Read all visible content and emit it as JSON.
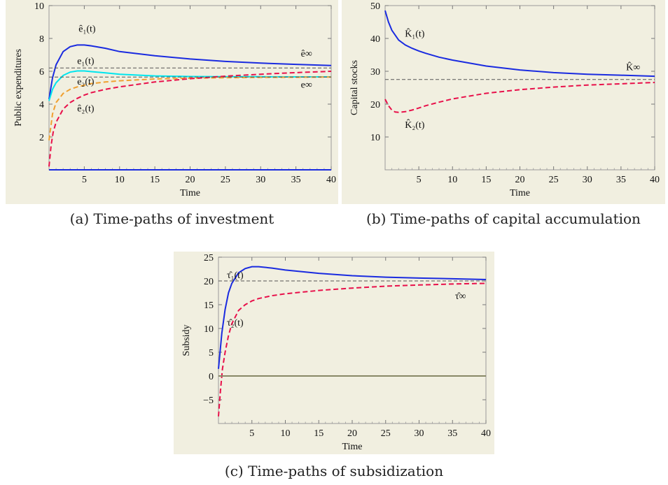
{
  "figures": [
    {
      "caption": "(a) Time-paths of investment",
      "chart_data": {
        "type": "line",
        "xlabel": "Time",
        "ylabel": "Public expenditures",
        "xlim": [
          0,
          40
        ],
        "ylim": [
          0,
          10
        ],
        "xticks": [
          5,
          10,
          15,
          20,
          25,
          30,
          35,
          40
        ],
        "yticks": [
          2,
          4,
          6,
          8,
          10
        ],
        "series": [
          {
            "color": "#1a2be0",
            "dash": "solid",
            "x": [
              0,
              0.5,
              1,
              2,
              3,
              4,
              5,
              6,
              8,
              10,
              15,
              20,
              25,
              30,
              35,
              40
            ],
            "y": [
              4.3,
              5.6,
              6.4,
              7.2,
              7.5,
              7.6,
              7.6,
              7.55,
              7.4,
              7.2,
              6.95,
              6.75,
              6.6,
              6.5,
              6.42,
              6.35
            ]
          },
          {
            "color": "#00e5ee",
            "dash": "solid",
            "x": [
              0,
              0.5,
              1,
              2,
              3,
              4,
              5,
              6,
              8,
              10,
              15,
              20,
              25,
              30,
              35,
              40
            ],
            "y": [
              4.2,
              4.9,
              5.3,
              5.75,
              5.95,
              6.02,
              6.02,
              5.98,
              5.9,
              5.82,
              5.72,
              5.68,
              5.67,
              5.67,
              5.66,
              5.66
            ]
          },
          {
            "color": "#f0a030",
            "dash": "dashed",
            "x": [
              0,
              0.5,
              1,
              2,
              3,
              4,
              5,
              6,
              8,
              10,
              15,
              20,
              25,
              30,
              35,
              40
            ],
            "y": [
              1.8,
              3.4,
              4.1,
              4.65,
              4.9,
              5.05,
              5.15,
              5.25,
              5.35,
              5.42,
              5.53,
              5.58,
              5.61,
              5.63,
              5.64,
              5.65
            ]
          },
          {
            "color": "#e8104a",
            "dash": "dashed",
            "x": [
              0,
              0.3,
              0.6,
              1,
              2,
              3,
              4,
              5,
              6,
              8,
              10,
              15,
              20,
              25,
              30,
              35,
              40
            ],
            "y": [
              0.2,
              1.5,
              2.3,
              2.9,
              3.7,
              4.1,
              4.35,
              4.55,
              4.7,
              4.9,
              5.05,
              5.35,
              5.55,
              5.7,
              5.82,
              5.92,
              6.0
            ]
          },
          {
            "color": "#1a2be0",
            "dash": "solid",
            "x": [
              0,
              40
            ],
            "y": [
              0,
              0
            ]
          },
          {
            "color": "#555555",
            "dash": "reference",
            "x": [
              0,
              40
            ],
            "y": [
              6.2,
              6.2
            ]
          },
          {
            "color": "#555555",
            "dash": "reference",
            "x": [
              0,
              40
            ],
            "y": [
              5.65,
              5.65
            ]
          }
        ],
        "annotations": [
          {
            "text": "ê₁(t)",
            "x": 5.4,
            "y": 8.4
          },
          {
            "text": "e₁(t)",
            "x": 5.2,
            "y": 6.45
          },
          {
            "text": "e₂(t)",
            "x": 5.2,
            "y": 5.2
          },
          {
            "text": "ê₂(t)",
            "x": 5.2,
            "y": 3.55
          },
          {
            "text": "ê∞",
            "x": 36.5,
            "y": 6.9
          },
          {
            "text": "e∞",
            "x": 36.5,
            "y": 5.0
          }
        ]
      }
    },
    {
      "caption": "(b) Time-paths of capital accumulation",
      "chart_data": {
        "type": "line",
        "xlabel": "Time",
        "ylabel": "Capital stocks",
        "xlim": [
          0,
          40
        ],
        "ylim": [
          0,
          50
        ],
        "xticks": [
          5,
          10,
          15,
          20,
          25,
          30,
          35,
          40
        ],
        "yticks": [
          10,
          20,
          30,
          40,
          50
        ],
        "series": [
          {
            "color": "#1a2be0",
            "dash": "solid",
            "x": [
              0,
              0.5,
              1,
              2,
              3,
              4,
              5,
              6,
              8,
              10,
              15,
              20,
              25,
              30,
              35,
              40
            ],
            "y": [
              48.5,
              45,
              42.5,
              39.5,
              38,
              37,
              36.2,
              35.5,
              34.3,
              33.4,
              31.6,
              30.4,
              29.6,
              29.1,
              28.8,
              28.5
            ]
          },
          {
            "color": "#e8104a",
            "dash": "dashed",
            "x": [
              0,
              0.5,
              1,
              1.5,
              2,
              3,
              4,
              5,
              6,
              8,
              10,
              15,
              20,
              25,
              30,
              35,
              40
            ],
            "y": [
              21.5,
              19.5,
              18.2,
              17.6,
              17.5,
              17.7,
              18.2,
              18.8,
              19.5,
              20.6,
              21.6,
              23.3,
              24.4,
              25.2,
              25.8,
              26.2,
              26.6
            ]
          },
          {
            "color": "#555555",
            "dash": "reference",
            "x": [
              0,
              40
            ],
            "y": [
              27.5,
              27.5
            ]
          }
        ],
        "annotations": [
          {
            "text": "K̂₁(t)",
            "x": 4.4,
            "y": 40.5
          },
          {
            "text": "K̂₂(t)",
            "x": 4.4,
            "y": 12.8
          },
          {
            "text": "K̂∞",
            "x": 36.8,
            "y": 30.3
          }
        ]
      }
    },
    {
      "caption": "(c) Time-paths of subsidization",
      "chart_data": {
        "type": "line",
        "xlabel": "Time",
        "ylabel": "Subsidy",
        "xlim": [
          0,
          40
        ],
        "ylim": [
          -10,
          25
        ],
        "xticks": [
          5,
          10,
          15,
          20,
          25,
          30,
          35,
          40
        ],
        "yticks": [
          -5,
          0,
          5,
          10,
          15,
          20,
          25
        ],
        "series": [
          {
            "color": "#1a2be0",
            "dash": "solid",
            "x": [
              0,
              0.5,
              1,
              1.5,
              2,
              3,
              4,
              5,
              6,
              8,
              10,
              15,
              20,
              25,
              30,
              35,
              40
            ],
            "y": [
              1.5,
              9,
              14,
              17.5,
              19.5,
              21.7,
              22.6,
              23.0,
              23.0,
              22.7,
              22.3,
              21.6,
              21.1,
              20.8,
              20.6,
              20.45,
              20.3
            ]
          },
          {
            "color": "#e8104a",
            "dash": "dashed",
            "x": [
              0,
              0.3,
              0.6,
              1,
              1.5,
              2,
              3,
              4,
              5,
              6,
              8,
              10,
              15,
              20,
              25,
              30,
              35,
              40
            ],
            "y": [
              -8.5,
              -3,
              1.5,
              5,
              8.5,
              11,
              13.8,
              15.0,
              15.8,
              16.3,
              16.9,
              17.3,
              18.0,
              18.5,
              18.9,
              19.15,
              19.35,
              19.5
            ]
          },
          {
            "color": "#888866",
            "dash": "solid",
            "x": [
              0,
              40
            ],
            "y": [
              0,
              0
            ]
          },
          {
            "color": "#555555",
            "dash": "reference",
            "x": [
              0,
              40
            ],
            "y": [
              20,
              20
            ]
          }
        ],
        "annotations": [
          {
            "text": "τ̂₁(t)",
            "x": 2.5,
            "y": 20.6
          },
          {
            "text": "τ̂₂(t)",
            "x": 2.5,
            "y": 10.6
          },
          {
            "text": "τ̂∞",
            "x": 36.2,
            "y": 16.2
          }
        ]
      }
    }
  ]
}
